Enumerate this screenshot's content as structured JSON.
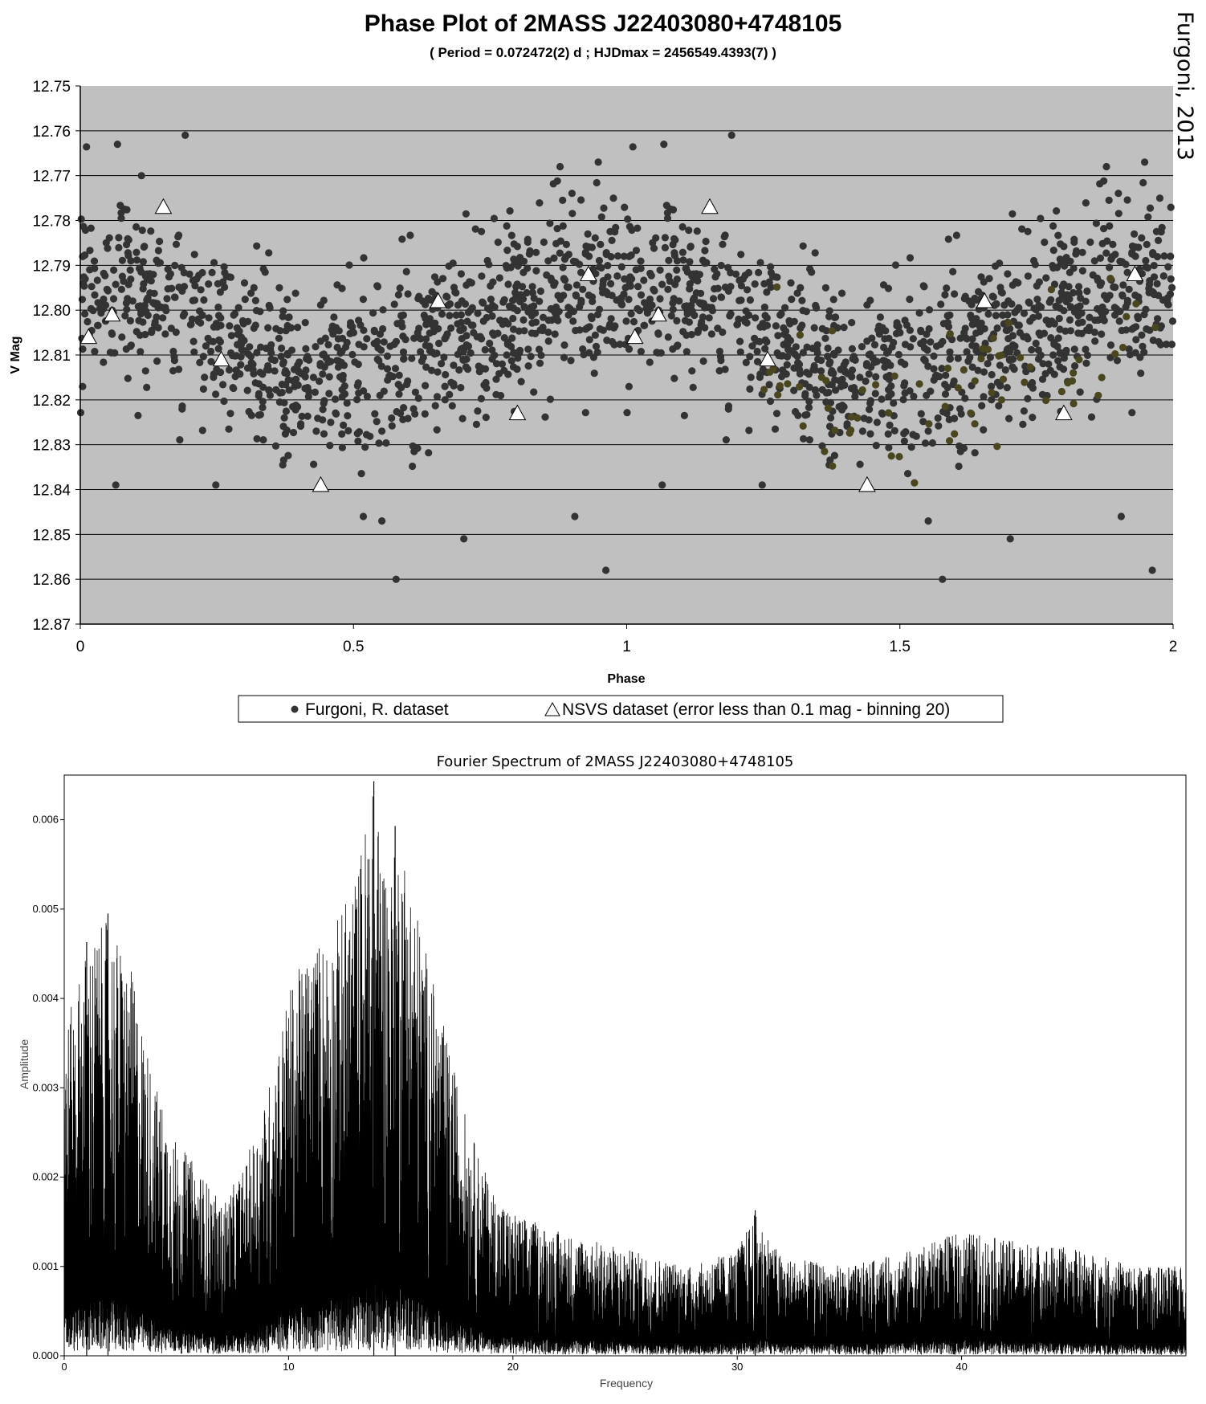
{
  "credit": "Furgoni, 2013",
  "chart_data": [
    {
      "type": "scatter",
      "title": "Phase Plot of 2MASS J22403080+4748105",
      "subtitle": "( Period = 0.072472(2) d ; HJDmax = 2456549.4393(7) )",
      "xlabel": "Phase",
      "ylabel": "V Mag",
      "xlim": [
        0,
        2
      ],
      "ylim": [
        12.75,
        12.87
      ],
      "y_inverted": true,
      "xticks": [
        "0",
        "0.5",
        "1",
        "1.5",
        "2"
      ],
      "yticks": [
        "12.75",
        "12.76",
        "12.77",
        "12.78",
        "12.79",
        "12.80",
        "12.81",
        "12.82",
        "12.83",
        "12.84",
        "12.85",
        "12.86",
        "12.87"
      ],
      "grid": "horizontal",
      "background": "#c0c0c0",
      "legend_position": "bottom",
      "legend": [
        {
          "label": "Furgoni, R. dataset",
          "marker": "circle",
          "color": "#333333"
        },
        {
          "label": "NSVS dataset (error less than 0.1 mag - binning 20)",
          "marker": "triangle",
          "color": "#ffffff"
        }
      ],
      "series": [
        {
          "name": "Furgoni, R. dataset",
          "marker": "circle",
          "color": "#333333",
          "mean_curve": {
            "phase": [
              0,
              0.1,
              0.2,
              0.3,
              0.4,
              0.5,
              0.6,
              0.7,
              0.8,
              0.9,
              1.0
            ],
            "mag": [
              12.797,
              12.794,
              12.8,
              12.807,
              12.814,
              12.813,
              12.811,
              12.806,
              12.8,
              12.795,
              12.797
            ]
          },
          "scatter_sigma": 0.0095,
          "count": 2000,
          "outliers": [
            {
              "x": 0.068,
              "y": 12.763
            },
            {
              "x": 0.192,
              "y": 12.761
            },
            {
              "x": 0.112,
              "y": 12.77
            },
            {
              "x": 0.578,
              "y": 12.86
            },
            {
              "x": 0.702,
              "y": 12.851
            },
            {
              "x": 0.962,
              "y": 12.858
            },
            {
              "x": 0.905,
              "y": 12.846
            },
            {
              "x": 0.518,
              "y": 12.846
            },
            {
              "x": 0.552,
              "y": 12.847
            },
            {
              "x": 0.065,
              "y": 12.839
            },
            {
              "x": 0.248,
              "y": 12.839
            },
            {
              "x": 0.948,
              "y": 12.767
            },
            {
              "x": 0.878,
              "y": 12.768
            },
            {
              "x": 1.068,
              "y": 12.763
            },
            {
              "x": 1.192,
              "y": 12.761
            },
            {
              "x": 1.578,
              "y": 12.86
            },
            {
              "x": 1.702,
              "y": 12.851
            },
            {
              "x": 1.962,
              "y": 12.858
            },
            {
              "x": 1.905,
              "y": 12.846
            },
            {
              "x": 1.552,
              "y": 12.847
            },
            {
              "x": 1.878,
              "y": 12.768
            },
            {
              "x": 1.948,
              "y": 12.767
            },
            {
              "x": 1.065,
              "y": 12.839
            },
            {
              "x": 1.248,
              "y": 12.839
            }
          ]
        },
        {
          "name": "NSVS dataset (error less than 0.1 mag - binning 20)",
          "marker": "triangle",
          "color": "#ffffff",
          "points": [
            {
              "x": 0.015,
              "y": 12.806
            },
            {
              "x": 0.058,
              "y": 12.801
            },
            {
              "x": 0.152,
              "y": 12.777
            },
            {
              "x": 0.258,
              "y": 12.811
            },
            {
              "x": 0.44,
              "y": 12.839
            },
            {
              "x": 0.655,
              "y": 12.798
            },
            {
              "x": 0.8,
              "y": 12.823
            },
            {
              "x": 0.93,
              "y": 12.792
            },
            {
              "x": 1.015,
              "y": 12.806
            },
            {
              "x": 1.058,
              "y": 12.801
            },
            {
              "x": 1.152,
              "y": 12.777
            },
            {
              "x": 1.258,
              "y": 12.811
            },
            {
              "x": 1.44,
              "y": 12.839
            },
            {
              "x": 1.655,
              "y": 12.798
            },
            {
              "x": 1.8,
              "y": 12.823
            },
            {
              "x": 1.93,
              "y": 12.792
            }
          ]
        }
      ]
    },
    {
      "type": "line",
      "title": "Fourier Spectrum of 2MASS J22403080+4748105",
      "xlabel": "Frequency",
      "ylabel": "Amplitude",
      "xlim": [
        0,
        50
      ],
      "ylim": [
        0,
        0.0065
      ],
      "xticks": [
        "0",
        "10",
        "20",
        "30",
        "40"
      ],
      "yticks": [
        "0.000",
        "0.001",
        "0.002",
        "0.003",
        "0.004",
        "0.005",
        "0.006"
      ],
      "grid": false,
      "series": [
        {
          "name": "",
          "color": "#000000",
          "envelope": {
            "frequency": [
              0,
              0.5,
              1,
              2,
              3,
              4,
              5,
              6,
              7,
              8,
              9,
              10,
              11,
              12,
              13,
              13.7,
              14.5,
              15,
              16,
              17,
              18,
              19,
              20,
              22,
              25,
              28,
              30,
              30.8,
              32,
              35,
              38,
              40,
              42,
              45,
              48,
              50
            ],
            "max_amplitude": [
              0.0036,
              0.0041,
              0.0046,
              0.0049,
              0.0043,
              0.0031,
              0.0024,
              0.0021,
              0.0017,
              0.0021,
              0.0029,
              0.0041,
              0.0046,
              0.0048,
              0.0054,
              0.0064,
              0.0054,
              0.0059,
              0.0047,
              0.0036,
              0.0026,
              0.0019,
              0.0016,
              0.0014,
              0.0012,
              0.001,
              0.0012,
              0.0016,
              0.0011,
              0.001,
              0.0012,
              0.0014,
              0.0013,
              0.0012,
              0.001,
              0.001
            ]
          },
          "peaks": [
            {
              "frequency": 13.8,
              "amplitude": 0.00643
            },
            {
              "frequency": 14.75,
              "amplitude": 0.00593
            },
            {
              "frequency": 1.95,
              "amplitude": 0.00495
            },
            {
              "frequency": 1.0,
              "amplitude": 0.00463
            },
            {
              "frequency": 30.8,
              "amplitude": 0.00163
            }
          ]
        }
      ]
    }
  ]
}
